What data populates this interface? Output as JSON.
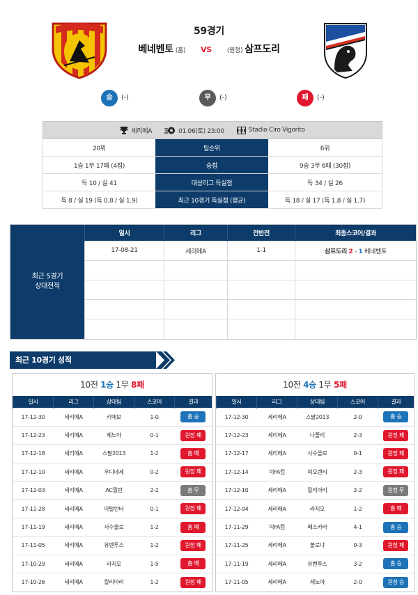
{
  "match": {
    "game_no": "59경기",
    "home_team": "베네벤토",
    "home_tag": "(홈)",
    "vs": "VS",
    "away_tag": "(원정)",
    "away_team": "삼프도리"
  },
  "prediction": {
    "win_label": "승",
    "win_val": "(-)",
    "draw_label": "무",
    "draw_val": "(-)",
    "lose_label": "패",
    "lose_val": "(-)"
  },
  "info": {
    "league": "세리에A",
    "datetime": "01.06(토) 23:00",
    "stadium": "Stadio Ciro Vigorito"
  },
  "compare": [
    {
      "home": "20위",
      "label": "팀순위",
      "away": "6위"
    },
    {
      "home": "1승 1무 17패 (4점)",
      "label": "승점",
      "away": "9승 3무 6패 (30점)"
    },
    {
      "home": "득 10 / 실 41",
      "label": "대상리그 득실점",
      "away": "득 34 / 실 26"
    },
    {
      "home": "득 8 / 실 19 (득 0.8 / 실 1.9)",
      "label": "최근 10경기 득실점 (평균)",
      "away": "득 18 / 실 17 (득 1.8 / 실 1.7)"
    }
  ],
  "h2h": {
    "side_label_1": "최근 5경기",
    "side_label_2": "상대전적",
    "headers": [
      "일시",
      "리그",
      "전반전",
      "최종스코어/결과"
    ],
    "row": {
      "date": "17-08-21",
      "league": "세리에A",
      "half": "1-1",
      "winner": "삼프도리",
      "score_a": "2",
      "dash": "-",
      "score_b": "1",
      "loser": "베네벤토"
    }
  },
  "section_title": "최근 10경기 성적",
  "recent_home": {
    "summary_prefix": "10전",
    "wins": "1승",
    "draws": "1무",
    "losses": "8패",
    "headers": [
      "일시",
      "리그",
      "상대팀",
      "스코어",
      "결과"
    ],
    "rows": [
      {
        "date": "17-12-30",
        "league": "세리에A",
        "opp": "키에보",
        "score": "1-0",
        "result": "홈 승",
        "type": "win"
      },
      {
        "date": "17-12-23",
        "league": "세리에A",
        "opp": "제노아",
        "score": "0-1",
        "result": "원정 패",
        "type": "lose"
      },
      {
        "date": "17-12-18",
        "league": "세리에A",
        "opp": "스팔2013",
        "score": "1-2",
        "result": "홈 패",
        "type": "lose"
      },
      {
        "date": "17-12-10",
        "league": "세리에A",
        "opp": "우디네세",
        "score": "0-2",
        "result": "원정 패",
        "type": "lose"
      },
      {
        "date": "17-12-03",
        "league": "세리에A",
        "opp": "AC밀란",
        "score": "2-2",
        "result": "홈 무",
        "type": "draw"
      },
      {
        "date": "17-11-28",
        "league": "세리에A",
        "opp": "아탈란타",
        "score": "0-1",
        "result": "원정 패",
        "type": "lose"
      },
      {
        "date": "17-11-19",
        "league": "세리에A",
        "opp": "사수올로",
        "score": "1-2",
        "result": "홈 패",
        "type": "lose"
      },
      {
        "date": "17-11-05",
        "league": "세리에A",
        "opp": "유벤투스",
        "score": "1-2",
        "result": "원정 패",
        "type": "lose"
      },
      {
        "date": "17-10-29",
        "league": "세리에A",
        "opp": "라치오",
        "score": "1-5",
        "result": "홈 패",
        "type": "lose"
      },
      {
        "date": "17-10-26",
        "league": "세리에A",
        "opp": "칼리아리",
        "score": "1-2",
        "result": "원정 패",
        "type": "lose"
      }
    ]
  },
  "recent_away": {
    "summary_prefix": "10전",
    "wins": "4승",
    "draws": "1무",
    "losses": "5패",
    "headers": [
      "일시",
      "리그",
      "상대팀",
      "스코어",
      "결과"
    ],
    "rows": [
      {
        "date": "17-12-30",
        "league": "세리에A",
        "opp": "스팔2013",
        "score": "2-0",
        "result": "홈 승",
        "type": "win"
      },
      {
        "date": "17-12-23",
        "league": "세리에A",
        "opp": "나폴리",
        "score": "2-3",
        "result": "원정 패",
        "type": "lose"
      },
      {
        "date": "17-12-17",
        "league": "세리에A",
        "opp": "사수올로",
        "score": "0-1",
        "result": "원정 패",
        "type": "lose"
      },
      {
        "date": "17-12-14",
        "league": "이FA컵",
        "opp": "피오렌티",
        "score": "2-3",
        "result": "원정 패",
        "type": "lose"
      },
      {
        "date": "17-12-10",
        "league": "세리에A",
        "opp": "칼리아리",
        "score": "2-2",
        "result": "원정 무",
        "type": "draw"
      },
      {
        "date": "17-12-04",
        "league": "세리에A",
        "opp": "라치오",
        "score": "1-2",
        "result": "홈 패",
        "type": "lose"
      },
      {
        "date": "17-11-29",
        "league": "이FA컵",
        "opp": "페스카라",
        "score": "4-1",
        "result": "홈 승",
        "type": "win"
      },
      {
        "date": "17-11-25",
        "league": "세리에A",
        "opp": "볼로냐",
        "score": "0-3",
        "result": "원정 패",
        "type": "lose"
      },
      {
        "date": "17-11-19",
        "league": "세리에A",
        "opp": "유벤투스",
        "score": "3-2",
        "result": "홈 승",
        "type": "win"
      },
      {
        "date": "17-11-05",
        "league": "세리에A",
        "opp": "제노아",
        "score": "2-0",
        "result": "원정 승",
        "type": "win"
      }
    ]
  },
  "colors": {
    "navy": "#0e3c6a",
    "win": "#1e73b8",
    "draw": "#7a7a7a",
    "lose": "#e0182d",
    "home_logo_yellow": "#f5c400",
    "home_logo_red": "#d42b1e"
  }
}
